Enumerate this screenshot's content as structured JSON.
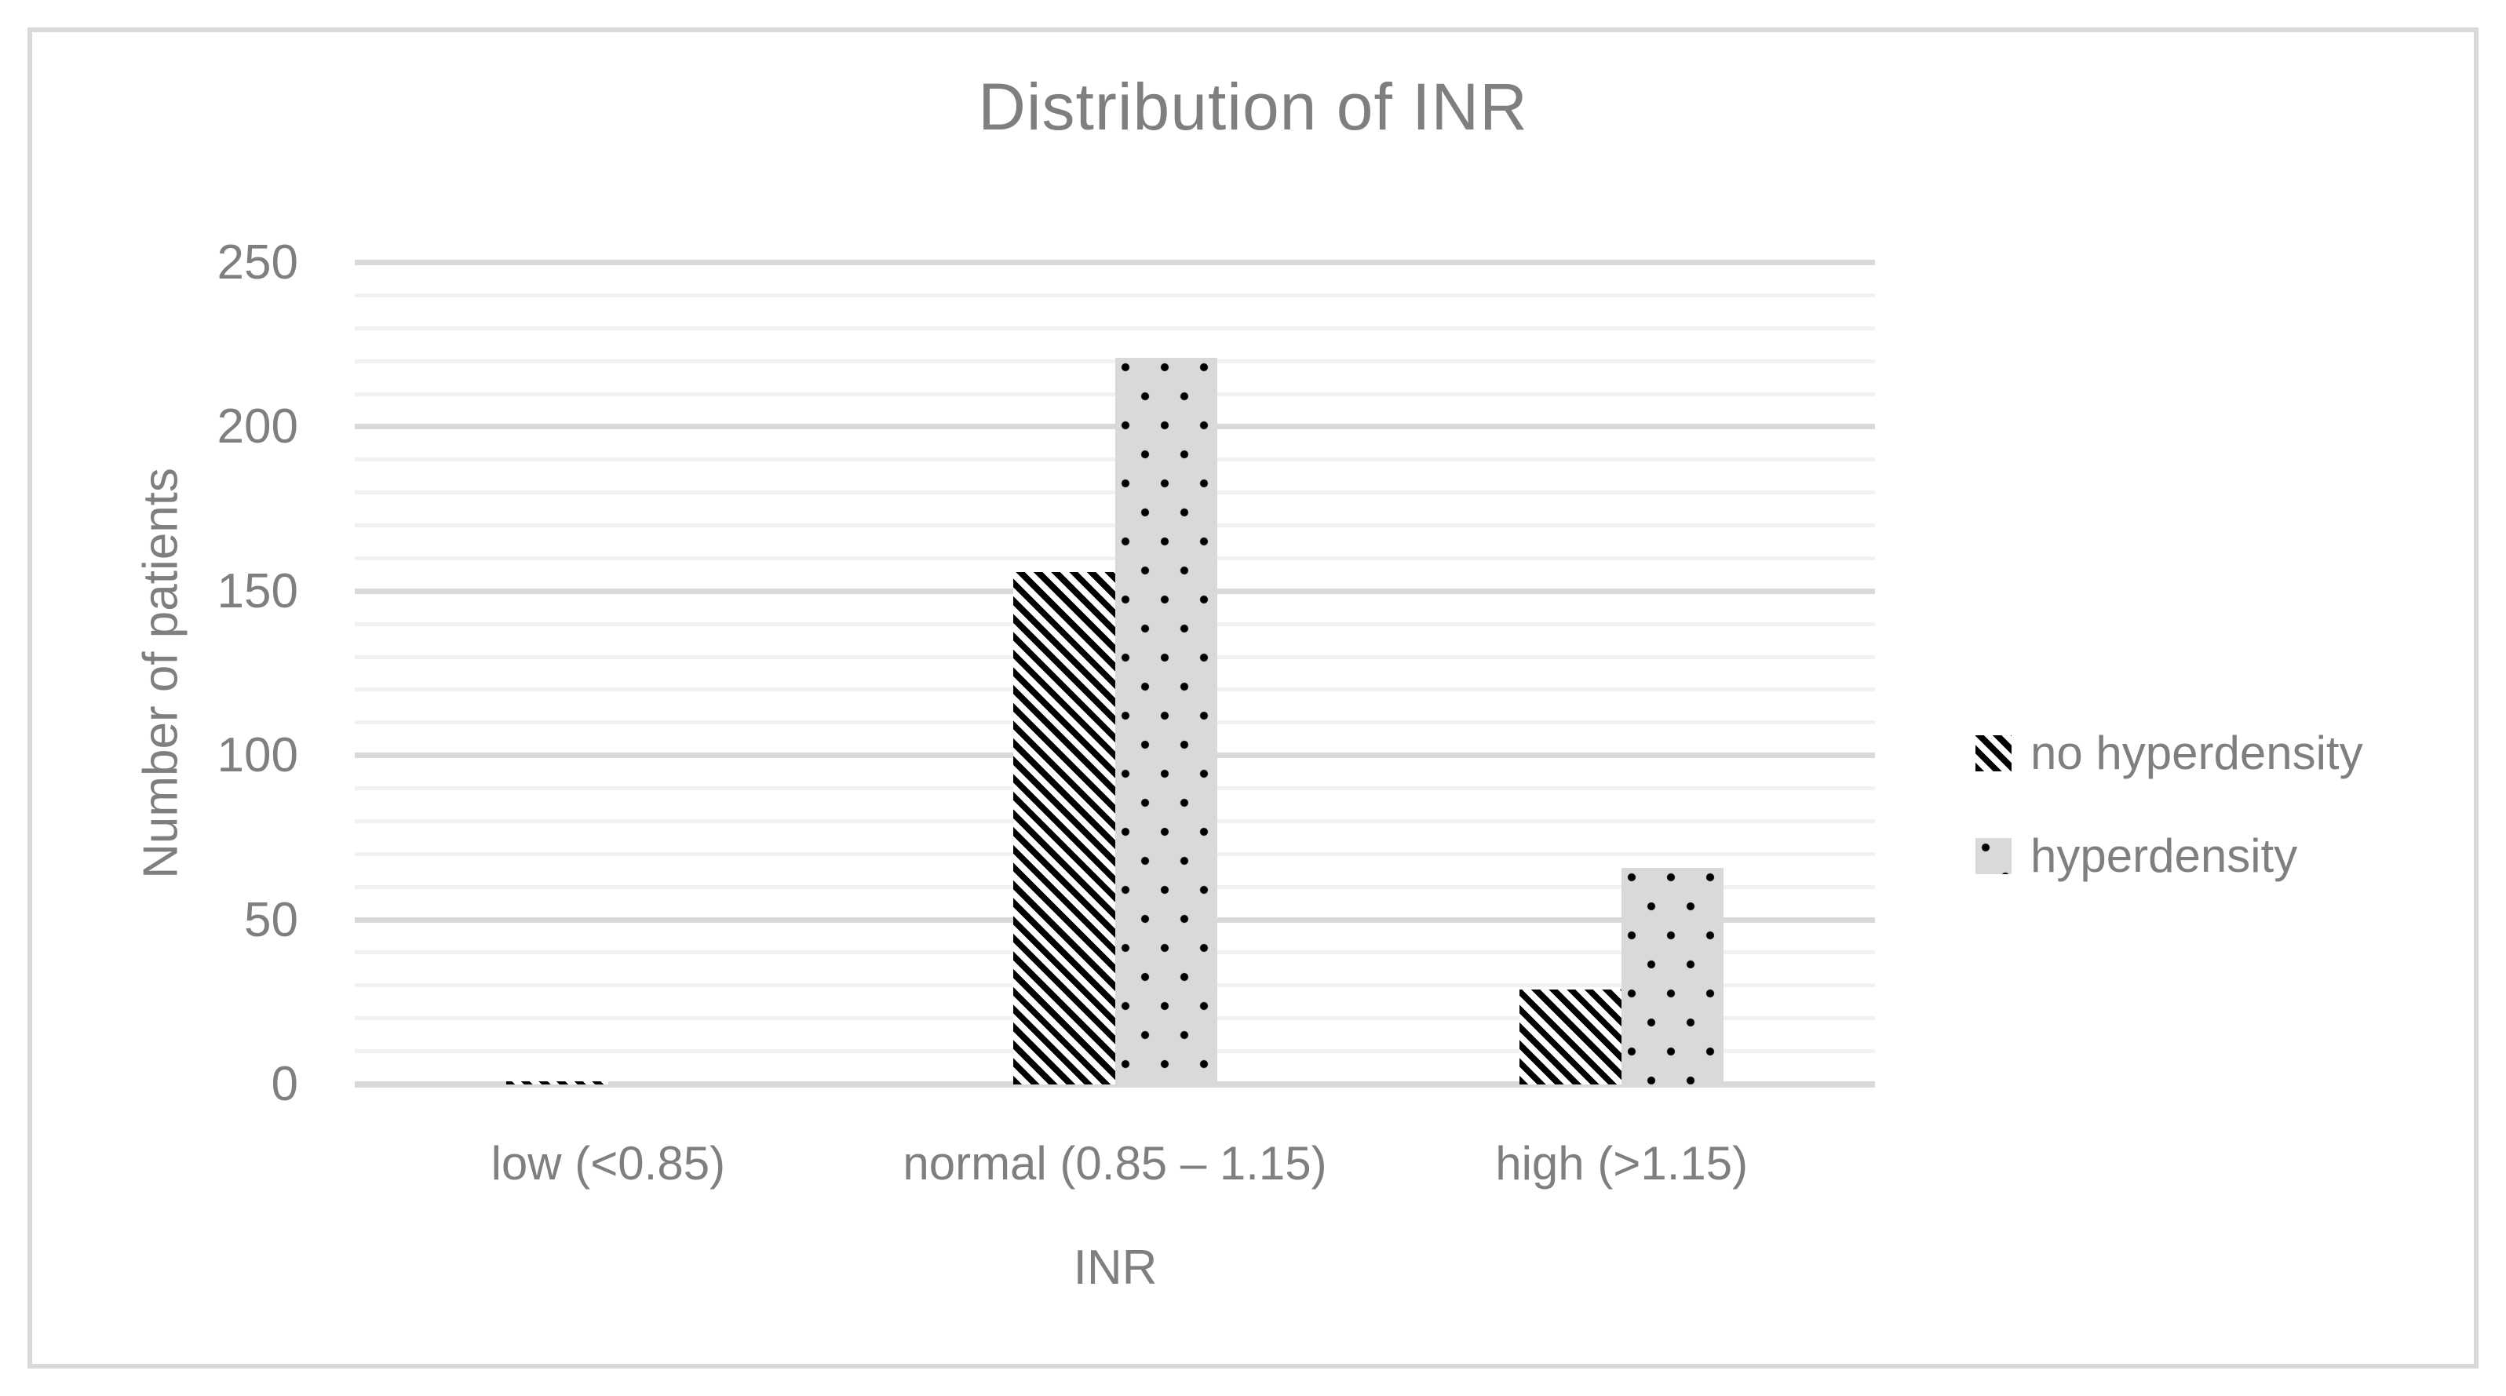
{
  "chart_data": {
    "type": "bar",
    "title": "Distribution of INR",
    "xlabel": "INR",
    "ylabel": "Number of patients",
    "categories": [
      "low (<0.85)",
      "normal (0.85 – 1.15)",
      "high (>1.15)"
    ],
    "category_slugs": [
      "low",
      "normal",
      "high"
    ],
    "series": [
      {
        "name": "no hyperdensity",
        "pattern": "diagonal-stripes",
        "values": [
          1,
          156,
          29
        ]
      },
      {
        "name": "hyperdensity",
        "pattern": "dots",
        "values": [
          0,
          221,
          66
        ]
      }
    ],
    "ylim": [
      0,
      250
    ],
    "yticks": [
      0,
      50,
      100,
      150,
      200,
      250
    ],
    "ytick_step": 50,
    "minor_grid_step": 10,
    "grid": true,
    "legend_position": "right"
  },
  "colors": {
    "text": "#7f7f7f",
    "grid_major": "#d9d9d9",
    "grid_minor": "#f2f2f2",
    "axis_line": "#d9d9d9",
    "frame_border": "#d9d9d9",
    "dot_bar_fill": "#d9d9d9",
    "pattern_ink": "#000000",
    "background": "#ffffff"
  }
}
